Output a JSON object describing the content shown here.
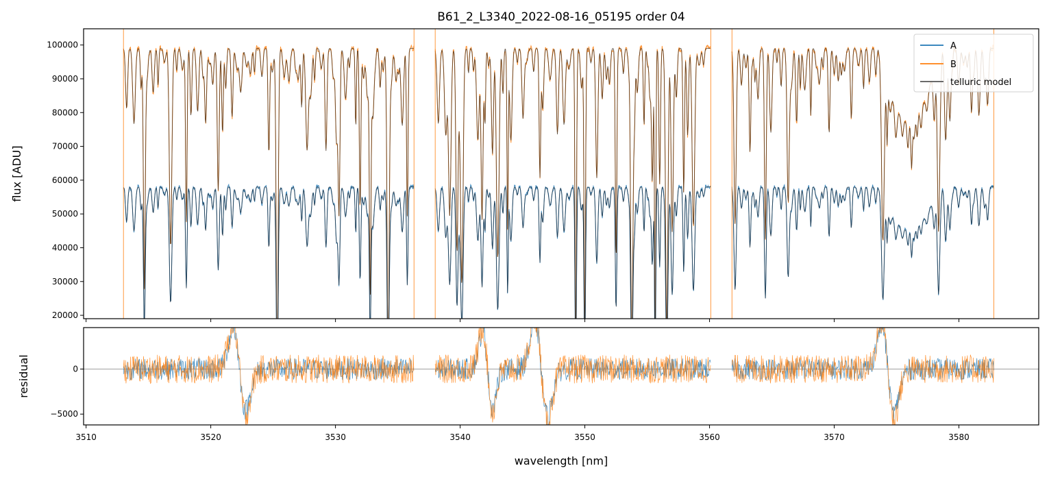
{
  "chart_data": [
    {
      "type": "line",
      "title": "B61_2_L3340_2022-08-16_05195  order 04",
      "xlabel": "",
      "ylabel": "flux [ADU]",
      "xlim": [
        3509.8,
        3586.4
      ],
      "ylim": [
        19000,
        104800
      ],
      "xticks": [
        3510,
        3520,
        3530,
        3540,
        3550,
        3560,
        3570,
        3580
      ],
      "yticks": [
        20000,
        30000,
        40000,
        50000,
        60000,
        70000,
        80000,
        90000,
        100000
      ],
      "xtick_labels_visible": false,
      "legend_position": "top-right",
      "segments": [
        [
          3513.0,
          3536.3
        ],
        [
          3538.0,
          3560.1
        ],
        [
          3561.8,
          3582.8
        ]
      ],
      "series": [
        {
          "name": "A",
          "color": "#1f77b4",
          "continuum": 58000
        },
        {
          "name": "B",
          "color": "#ff7f0e",
          "continuum": 99000
        },
        {
          "name": "telluric model",
          "color": "#555555"
        }
      ]
    },
    {
      "type": "line",
      "xlabel": "wavelength [nm]",
      "ylabel": "residual",
      "xlim": [
        3509.8,
        3586.4
      ],
      "ylim": [
        -6200,
        4600
      ],
      "xticks": [
        3510,
        3520,
        3530,
        3540,
        3550,
        3560,
        3570,
        3580
      ],
      "yticks": [
        -5000,
        0
      ],
      "ytick_labels": [
        "−5000",
        "0"
      ],
      "zero_line": true,
      "residual_features": [
        {
          "x": 3522.3,
          "amp": 5200,
          "width": 0.5
        },
        {
          "x": 3542.2,
          "amp": 4800,
          "width": 0.4
        },
        {
          "x": 3546.5,
          "amp": 6000,
          "width": 0.5
        },
        {
          "x": 3574.3,
          "amp": 5600,
          "width": 0.5
        }
      ]
    }
  ]
}
